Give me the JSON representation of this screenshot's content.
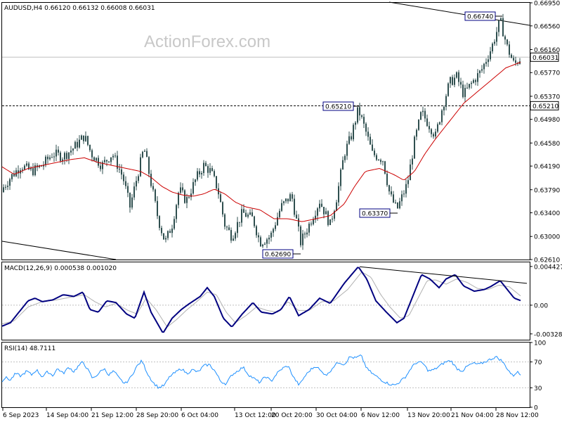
{
  "header": {
    "symbol_line": "AUDUSD,H4  0.66120 0.66132 0.66008 0.66031",
    "watermark": "ActionForex.com"
  },
  "chart_data": [
    {
      "type": "candlestick",
      "name": "price-panel",
      "symbol": "AUDUSD",
      "timeframe": "H4",
      "ohlc_header": {
        "open": 0.6612,
        "high": 0.66132,
        "low": 0.66008,
        "close": 0.66031
      },
      "ylim": [
        0.6261,
        0.6695
      ],
      "y_ticks": [
        "0.66950",
        "0.66560",
        "0.66160",
        "0.65770",
        "0.65370",
        "0.64980",
        "0.64580",
        "0.64190",
        "0.63790",
        "0.63400",
        "0.63000",
        "0.62610"
      ],
      "last_price": "0.66031",
      "level_line": "0.65210",
      "annotations": [
        "0.66740",
        "0.65210",
        "0.63370",
        "0.62690"
      ],
      "close_path": [
        [
          0,
          0.6375
        ],
        [
          15,
          0.64
        ],
        [
          30,
          0.642
        ],
        [
          45,
          0.641
        ],
        [
          60,
          0.642
        ],
        [
          75,
          0.644
        ],
        [
          90,
          0.6435
        ],
        [
          105,
          0.645
        ],
        [
          120,
          0.647
        ],
        [
          130,
          0.644
        ],
        [
          145,
          0.642
        ],
        [
          160,
          0.644
        ],
        [
          175,
          0.64
        ],
        [
          185,
          0.635
        ],
        [
          195,
          0.64
        ],
        [
          205,
          0.645
        ],
        [
          215,
          0.639
        ],
        [
          225,
          0.633
        ],
        [
          235,
          0.629
        ],
        [
          245,
          0.632
        ],
        [
          255,
          0.638
        ],
        [
          265,
          0.636
        ],
        [
          280,
          0.64
        ],
        [
          290,
          0.642
        ],
        [
          300,
          0.641
        ],
        [
          310,
          0.638
        ],
        [
          320,
          0.632
        ],
        [
          330,
          0.63
        ],
        [
          345,
          0.634
        ],
        [
          360,
          0.633
        ],
        [
          370,
          0.629
        ],
        [
          385,
          0.63
        ],
        [
          400,
          0.635
        ],
        [
          415,
          0.637
        ],
        [
          428,
          0.629
        ],
        [
          440,
          0.632
        ],
        [
          455,
          0.636
        ],
        [
          470,
          0.632
        ],
        [
          480,
          0.637
        ],
        [
          490,
          0.644
        ],
        [
          500,
          0.647
        ],
        [
          510,
          0.6515
        ],
        [
          520,
          0.648
        ],
        [
          530,
          0.644
        ],
        [
          545,
          0.643
        ],
        [
          555,
          0.637
        ],
        [
          565,
          0.6345
        ],
        [
          580,
          0.639
        ],
        [
          590,
          0.646
        ],
        [
          600,
          0.651
        ],
        [
          610,
          0.649
        ],
        [
          620,
          0.647
        ],
        [
          630,
          0.652
        ],
        [
          640,
          0.656
        ],
        [
          650,
          0.657
        ],
        [
          660,
          0.654
        ],
        [
          672,
          0.656
        ],
        [
          685,
          0.658
        ],
        [
          700,
          0.662
        ],
        [
          712,
          0.6665
        ],
        [
          722,
          0.662
        ],
        [
          732,
          0.659
        ],
        [
          742,
          0.6603
        ]
      ],
      "ma_path": [
        [
          0,
          0.642
        ],
        [
          20,
          0.6405
        ],
        [
          40,
          0.6415
        ],
        [
          60,
          0.642
        ],
        [
          80,
          0.6425
        ],
        [
          100,
          0.643
        ],
        [
          120,
          0.6433
        ],
        [
          140,
          0.6425
        ],
        [
          160,
          0.642
        ],
        [
          180,
          0.6415
        ],
        [
          200,
          0.641
        ],
        [
          215,
          0.64
        ],
        [
          230,
          0.6385
        ],
        [
          245,
          0.6375
        ],
        [
          260,
          0.637
        ],
        [
          275,
          0.6368
        ],
        [
          290,
          0.6372
        ],
        [
          305,
          0.638
        ],
        [
          320,
          0.6372
        ],
        [
          335,
          0.6358
        ],
        [
          350,
          0.635
        ],
        [
          370,
          0.6345
        ],
        [
          390,
          0.633
        ],
        [
          410,
          0.633
        ],
        [
          430,
          0.6325
        ],
        [
          450,
          0.633
        ],
        [
          470,
          0.6335
        ],
        [
          490,
          0.6355
        ],
        [
          505,
          0.6385
        ],
        [
          520,
          0.641
        ],
        [
          540,
          0.6415
        ],
        [
          560,
          0.6405
        ],
        [
          575,
          0.6395
        ],
        [
          590,
          0.641
        ],
        [
          605,
          0.644
        ],
        [
          620,
          0.6465
        ],
        [
          640,
          0.6495
        ],
        [
          660,
          0.6525
        ],
        [
          680,
          0.6545
        ],
        [
          700,
          0.6565
        ],
        [
          720,
          0.6585
        ],
        [
          742,
          0.6595
        ]
      ]
    },
    {
      "type": "line",
      "name": "macd-panel",
      "label": "MACD(12,26,9) 0.000538 0.001020",
      "ylim": [
        -0.00395,
        0.0049
      ],
      "y_ticks": [
        "0.004427",
        "0.00",
        "-0.003288"
      ],
      "macd_path": [
        [
          0,
          -0.0025
        ],
        [
          15,
          -0.002
        ],
        [
          30,
          -0.0005
        ],
        [
          40,
          0.0005
        ],
        [
          50,
          0.0008
        ],
        [
          60,
          0.0004
        ],
        [
          75,
          0.0006
        ],
        [
          90,
          0.0012
        ],
        [
          105,
          0.001
        ],
        [
          118,
          0.0015
        ],
        [
          128,
          -0.0005
        ],
        [
          140,
          -0.0008
        ],
        [
          152,
          0.0005
        ],
        [
          165,
          0.0003
        ],
        [
          180,
          -0.001
        ],
        [
          192,
          -0.0015
        ],
        [
          205,
          0.0015
        ],
        [
          215,
          -0.0008
        ],
        [
          232,
          -0.0032
        ],
        [
          245,
          -0.0015
        ],
        [
          258,
          -0.0005
        ],
        [
          270,
          0.0002
        ],
        [
          285,
          0.001
        ],
        [
          295,
          0.002
        ],
        [
          305,
          0.001
        ],
        [
          318,
          -0.0015
        ],
        [
          330,
          -0.0025
        ],
        [
          345,
          -0.001
        ],
        [
          360,
          0.0003
        ],
        [
          372,
          -0.0008
        ],
        [
          388,
          -0.001
        ],
        [
          400,
          -0.0005
        ],
        [
          412,
          0.001
        ],
        [
          425,
          -0.0012
        ],
        [
          440,
          -0.0005
        ],
        [
          455,
          0.0008
        ],
        [
          470,
          0.0002
        ],
        [
          490,
          0.0025
        ],
        [
          510,
          0.0044
        ],
        [
          522,
          0.003
        ],
        [
          535,
          0.0005
        ],
        [
          550,
          -0.0008
        ],
        [
          565,
          -0.002
        ],
        [
          575,
          -0.0015
        ],
        [
          590,
          0.0015
        ],
        [
          600,
          0.0035
        ],
        [
          612,
          0.003
        ],
        [
          625,
          0.002
        ],
        [
          635,
          0.003
        ],
        [
          648,
          0.0035
        ],
        [
          660,
          0.0022
        ],
        [
          675,
          0.0016
        ],
        [
          690,
          0.0018
        ],
        [
          700,
          0.0022
        ],
        [
          712,
          0.0028
        ],
        [
          722,
          0.0018
        ],
        [
          732,
          0.0008
        ],
        [
          742,
          0.0005
        ]
      ],
      "signal_path": [
        [
          0,
          -0.0022
        ],
        [
          20,
          -0.0018
        ],
        [
          40,
          -0.0002
        ],
        [
          60,
          0.0004
        ],
        [
          80,
          0.0006
        ],
        [
          100,
          0.0009
        ],
        [
          120,
          0.0012
        ],
        [
          135,
          0.0004
        ],
        [
          150,
          -0.0002
        ],
        [
          165,
          0.0002
        ],
        [
          182,
          -0.0006
        ],
        [
          195,
          -0.001
        ],
        [
          208,
          0.0008
        ],
        [
          222,
          -0.0005
        ],
        [
          238,
          -0.0025
        ],
        [
          252,
          -0.0016
        ],
        [
          265,
          -0.0006
        ],
        [
          280,
          0.0004
        ],
        [
          295,
          0.0015
        ],
        [
          308,
          0.0012
        ],
        [
          322,
          -0.0008
        ],
        [
          335,
          -0.002
        ],
        [
          350,
          -0.0012
        ],
        [
          365,
          -0.0002
        ],
        [
          380,
          -0.0006
        ],
        [
          395,
          -0.0008
        ],
        [
          410,
          0.0004
        ],
        [
          425,
          -0.0006
        ],
        [
          440,
          -0.0006
        ],
        [
          458,
          0.0004
        ],
        [
          475,
          0.0005
        ],
        [
          495,
          0.0018
        ],
        [
          515,
          0.0038
        ],
        [
          528,
          0.0032
        ],
        [
          542,
          0.0012
        ],
        [
          555,
          -0.0002
        ],
        [
          570,
          -0.0015
        ],
        [
          582,
          -0.0012
        ],
        [
          595,
          0.0008
        ],
        [
          608,
          0.0028
        ],
        [
          620,
          0.0029
        ],
        [
          635,
          0.0024
        ],
        [
          650,
          0.003
        ],
        [
          665,
          0.0026
        ],
        [
          680,
          0.0019
        ],
        [
          695,
          0.0018
        ],
        [
          710,
          0.0023
        ],
        [
          725,
          0.0021
        ],
        [
          742,
          0.001
        ]
      ],
      "trend_line": [
        [
          512,
          0.0044
        ],
        [
          750,
          0.0025
        ]
      ]
    },
    {
      "type": "line",
      "name": "rsi-panel",
      "label": "RSI(14) 48.7111",
      "ylim": [
        0,
        100
      ],
      "y_ticks": [
        "100",
        "70",
        "30",
        "0"
      ],
      "levels": [
        70,
        30
      ],
      "rsi_path": [
        [
          0,
          38
        ],
        [
          8,
          46
        ],
        [
          15,
          42
        ],
        [
          22,
          52
        ],
        [
          30,
          48
        ],
        [
          38,
          56
        ],
        [
          45,
          50
        ],
        [
          52,
          58
        ],
        [
          60,
          47
        ],
        [
          68,
          55
        ],
        [
          75,
          49
        ],
        [
          82,
          60
        ],
        [
          90,
          52
        ],
        [
          98,
          62
        ],
        [
          105,
          55
        ],
        [
          112,
          64
        ],
        [
          118,
          70
        ],
        [
          125,
          58
        ],
        [
          132,
          44
        ],
        [
          140,
          52
        ],
        [
          148,
          60
        ],
        [
          155,
          50
        ],
        [
          162,
          56
        ],
        [
          170,
          44
        ],
        [
          178,
          36
        ],
        [
          186,
          46
        ],
        [
          194,
          62
        ],
        [
          202,
          72
        ],
        [
          210,
          52
        ],
        [
          218,
          38
        ],
        [
          226,
          30
        ],
        [
          234,
          34
        ],
        [
          242,
          48
        ],
        [
          250,
          54
        ],
        [
          258,
          60
        ],
        [
          266,
          52
        ],
        [
          274,
          58
        ],
        [
          282,
          54
        ],
        [
          290,
          64
        ],
        [
          298,
          66
        ],
        [
          306,
          56
        ],
        [
          314,
          40
        ],
        [
          322,
          36
        ],
        [
          330,
          50
        ],
        [
          338,
          56
        ],
        [
          346,
          62
        ],
        [
          354,
          50
        ],
        [
          362,
          44
        ],
        [
          370,
          38
        ],
        [
          378,
          48
        ],
        [
          386,
          40
        ],
        [
          394,
          52
        ],
        [
          402,
          60
        ],
        [
          410,
          64
        ],
        [
          418,
          46
        ],
        [
          426,
          34
        ],
        [
          434,
          48
        ],
        [
          442,
          58
        ],
        [
          450,
          64
        ],
        [
          458,
          54
        ],
        [
          466,
          50
        ],
        [
          474,
          62
        ],
        [
          482,
          70
        ],
        [
          490,
          66
        ],
        [
          498,
          78
        ],
        [
          506,
          76
        ],
        [
          514,
          80
        ],
        [
          522,
          60
        ],
        [
          530,
          52
        ],
        [
          538,
          46
        ],
        [
          546,
          40
        ],
        [
          554,
          36
        ],
        [
          562,
          34
        ],
        [
          570,
          40
        ],
        [
          578,
          48
        ],
        [
          586,
          62
        ],
        [
          594,
          70
        ],
        [
          602,
          68
        ],
        [
          610,
          56
        ],
        [
          618,
          58
        ],
        [
          626,
          64
        ],
        [
          634,
          70
        ],
        [
          642,
          72
        ],
        [
          650,
          60
        ],
        [
          658,
          56
        ],
        [
          666,
          64
        ],
        [
          674,
          68
        ],
        [
          682,
          66
        ],
        [
          690,
          70
        ],
        [
          698,
          74
        ],
        [
          706,
          78
        ],
        [
          714,
          72
        ],
        [
          722,
          60
        ],
        [
          730,
          48
        ],
        [
          736,
          55
        ],
        [
          742,
          49
        ]
      ]
    }
  ],
  "x_axis": {
    "ticks": [
      "6 Sep 2023",
      "14 Sep 04:00",
      "21 Sep 12:00",
      "28 Sep 20:00",
      "6 Oct 04:00",
      "13 Oct 12:00",
      "20 Oct 20:00",
      "30 Oct 04:00",
      "6 Nov 12:00",
      "13 Nov 20:00",
      "21 Nov 04:00",
      "28 Nov 12:00"
    ]
  },
  "colors": {
    "candle": "#2f4f4f",
    "ma": "#cc0000",
    "macd": "#000080",
    "signal": "#b0b0b0",
    "rsi": "#1e90ff",
    "label_box": "#000080",
    "grid": "#c0c0c0"
  }
}
